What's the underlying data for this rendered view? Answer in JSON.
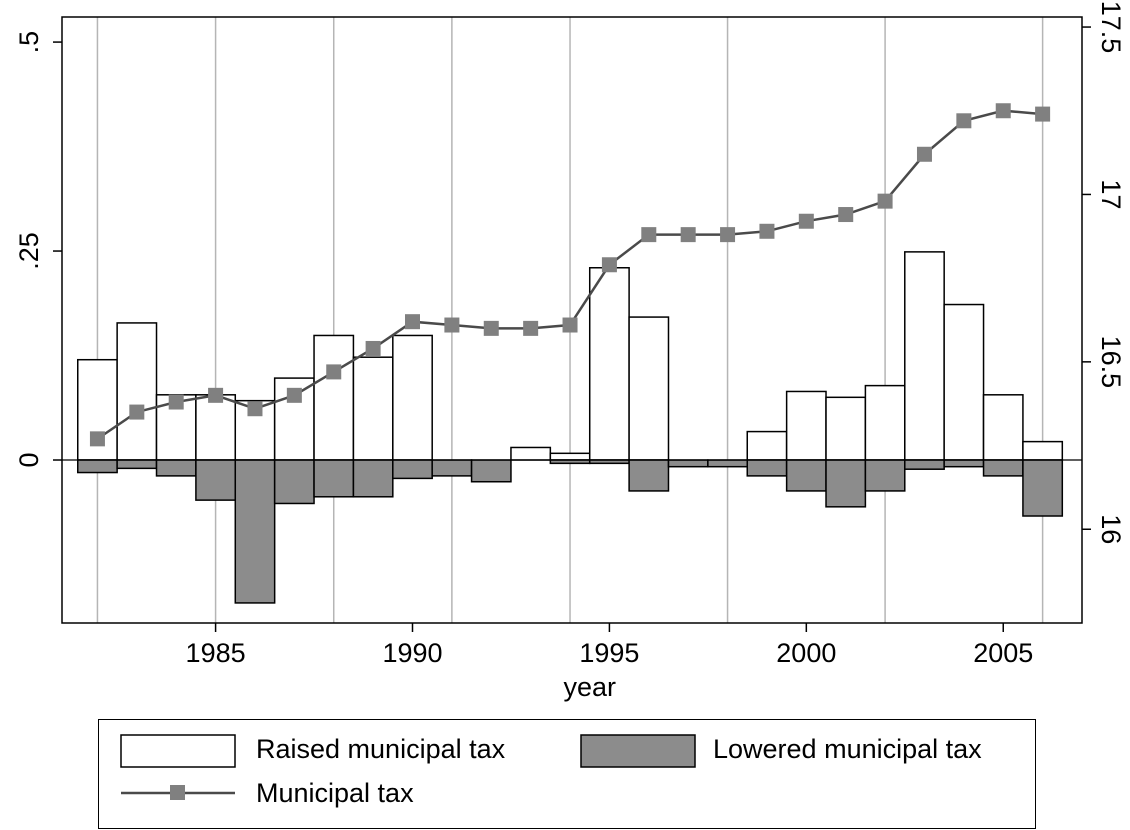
{
  "chart_data": {
    "type": "bar",
    "xlabel": "year",
    "x_tick_labels": [
      "1985",
      "1990",
      "1995",
      "2000",
      "2005"
    ],
    "left_axis_tick_labels": [
      ".5",
      ".25",
      "0"
    ],
    "right_axis_tick_labels": [
      "17.5",
      "17",
      "16.5",
      "16"
    ],
    "grid": true,
    "legend_placement": "bottom",
    "years": [
      1982,
      1983,
      1984,
      1985,
      1986,
      1987,
      1988,
      1989,
      1990,
      1991,
      1992,
      1993,
      1994,
      1995,
      1996,
      1997,
      1998,
      1999,
      2000,
      2001,
      2002,
      2003,
      2004,
      2005,
      2006
    ],
    "series": [
      {
        "name": "Raised municipal tax",
        "axis": "left",
        "type": "bar",
        "color": "#ffffff",
        "values": [
          0.12,
          0.164,
          0.078,
          0.078,
          0.071,
          0.098,
          0.149,
          0.123,
          0.149,
          0.0,
          0.0,
          0.015,
          0.008,
          0.23,
          0.171,
          0.0,
          0.0,
          0.034,
          0.082,
          0.075,
          0.089,
          0.249,
          0.186,
          0.078,
          0.022
        ]
      },
      {
        "name": "Lowered municipal tax",
        "axis": "left",
        "type": "bar",
        "color": "#8c8c8c",
        "values": [
          -0.015,
          -0.01,
          -0.019,
          -0.048,
          -0.171,
          -0.052,
          -0.044,
          -0.044,
          -0.022,
          -0.019,
          -0.026,
          0.0,
          -0.004,
          -0.004,
          -0.037,
          -0.008,
          -0.008,
          -0.019,
          -0.037,
          -0.056,
          -0.037,
          -0.011,
          -0.008,
          -0.019,
          -0.067
        ]
      },
      {
        "name": "Municipal tax",
        "axis": "right",
        "type": "line",
        "color": "#4a4a4a",
        "marker_color": "#808080",
        "values": [
          16.27,
          16.35,
          16.38,
          16.4,
          16.36,
          16.4,
          16.47,
          16.54,
          16.62,
          16.61,
          16.6,
          16.6,
          16.61,
          16.79,
          16.88,
          16.88,
          16.88,
          16.89,
          16.92,
          16.94,
          16.98,
          17.12,
          17.22,
          17.25,
          17.24
        ]
      }
    ],
    "left_ylim": [
      -0.195,
      0.53
    ],
    "right_ylim": [
      15.72,
      17.53
    ],
    "xlim": [
      1981.1,
      2007.0
    ],
    "vertical_gridlines_at": [
      1982,
      1985,
      1988,
      1991,
      1994,
      1998,
      2002,
      2006
    ]
  }
}
